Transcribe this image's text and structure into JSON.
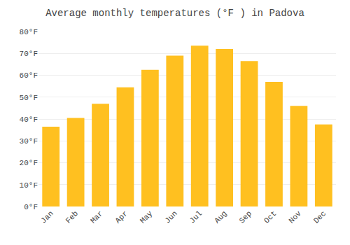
{
  "chart_data": {
    "type": "bar",
    "title": "Average monthly temperatures (°F ) in Padova",
    "categories": [
      "Jan",
      "Feb",
      "Mar",
      "Apr",
      "May",
      "Jun",
      "Jul",
      "Aug",
      "Sep",
      "Oct",
      "Nov",
      "Dec"
    ],
    "values": [
      36.5,
      40.5,
      47.0,
      54.5,
      62.5,
      69.0,
      73.5,
      72.0,
      66.5,
      57.0,
      46.0,
      37.5
    ],
    "color": "#FFC020",
    "ylim": [
      0,
      80
    ],
    "yticks": [
      {
        "value": 0,
        "label": "0°F"
      },
      {
        "value": 10,
        "label": "10°F"
      },
      {
        "value": 20,
        "label": "20°F"
      },
      {
        "value": 30,
        "label": "30°F"
      },
      {
        "value": 40,
        "label": "40°F"
      },
      {
        "value": 50,
        "label": "50°F"
      },
      {
        "value": 60,
        "label": "60°F"
      },
      {
        "value": 70,
        "label": "70°F"
      },
      {
        "value": 80,
        "label": "80°F"
      }
    ],
    "grid": true
  }
}
